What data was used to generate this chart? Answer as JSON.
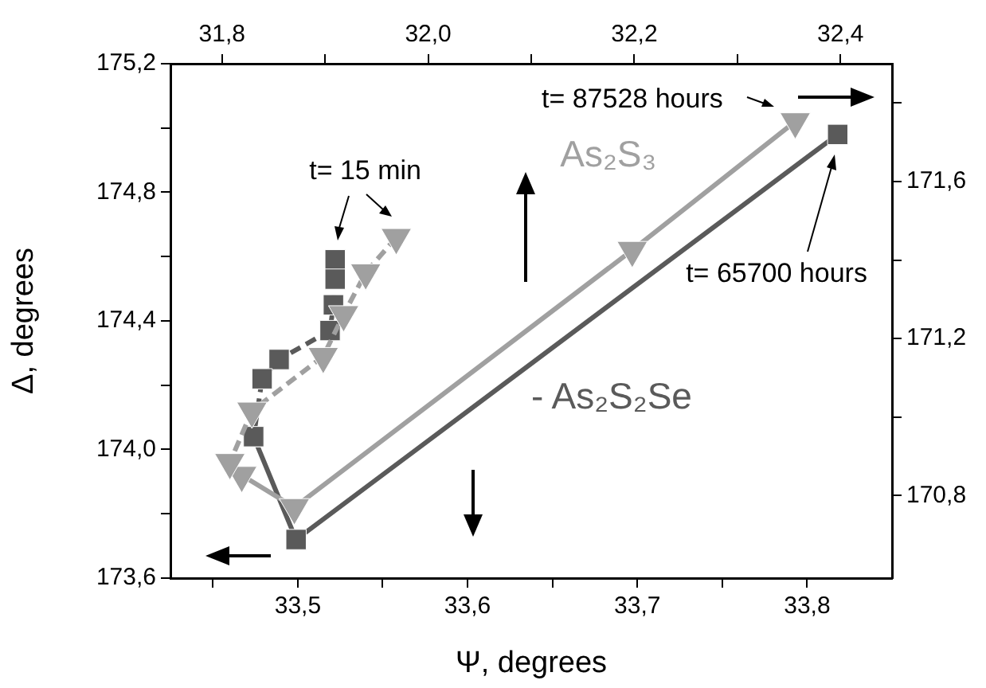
{
  "chart_data": {
    "type": "line",
    "xlabel": "Ψ, degrees",
    "ylabel": "Δ, degrees",
    "grid": false,
    "legend": false,
    "xlim": [
      33.425,
      33.85
    ],
    "xticks": [
      {
        "value": 33.45,
        "label": null
      },
      {
        "value": 33.5,
        "label": "33,5"
      },
      {
        "value": 33.55,
        "label": null
      },
      {
        "value": 33.6,
        "label": "33,6"
      },
      {
        "value": 33.65,
        "label": null
      },
      {
        "value": 33.7,
        "label": "33,7"
      },
      {
        "value": 33.75,
        "label": null
      },
      {
        "value": 33.8,
        "label": "33,8"
      }
    ],
    "x2lim": [
      31.75,
      32.45
    ],
    "x2ticks": [
      {
        "value": 31.8,
        "label": "31,8"
      },
      {
        "value": 31.9,
        "label": null
      },
      {
        "value": 32.0,
        "label": "32,0"
      },
      {
        "value": 32.1,
        "label": null
      },
      {
        "value": 32.2,
        "label": "32,2"
      },
      {
        "value": 32.3,
        "label": null
      },
      {
        "value": 32.4,
        "label": "32,4"
      }
    ],
    "ylim": [
      173.6,
      175.2
    ],
    "yticks": [
      {
        "value": 173.6,
        "label": "173,6"
      },
      {
        "value": 173.8,
        "label": null
      },
      {
        "value": 174.0,
        "label": "174,0"
      },
      {
        "value": 174.2,
        "label": null
      },
      {
        "value": 174.4,
        "label": "174,4"
      },
      {
        "value": 174.6,
        "label": null
      },
      {
        "value": 174.8,
        "label": "174,8"
      },
      {
        "value": 175.0,
        "label": null
      },
      {
        "value": 175.2,
        "label": "175,2"
      }
    ],
    "y2lim": [
      170.59,
      171.9
    ],
    "y2ticks": [
      {
        "value": 170.8,
        "label": "170,8"
      },
      {
        "value": 171.0,
        "label": null
      },
      {
        "value": 171.2,
        "label": "171,2"
      },
      {
        "value": 171.4,
        "label": null
      },
      {
        "value": 171.6,
        "label": "171,6"
      },
      {
        "value": 171.8,
        "label": null
      }
    ],
    "series": [
      {
        "color": "#a0a0a0",
        "marker": "triangle",
        "line_style": "dashed",
        "x": [
          33.558,
          33.54,
          33.527,
          33.515,
          33.473,
          33.46
        ],
        "values": [
          174.66,
          174.55,
          174.42,
          174.29,
          174.12,
          173.96
        ]
      },
      {
        "name": "As₂S₃",
        "color": "#a0a0a0",
        "marker": "triangle",
        "line_style": "solid",
        "x": [
          33.467,
          33.498,
          33.697,
          33.793
        ],
        "values": [
          173.92,
          173.82,
          174.62,
          175.02
        ]
      },
      {
        "color": "#5a5a5a",
        "marker": "square",
        "line_style": "dashed",
        "x": [
          33.522,
          33.522,
          33.521,
          33.519,
          33.489,
          33.479,
          33.474
        ],
        "values": [
          174.59,
          174.53,
          174.45,
          174.37,
          174.28,
          174.22,
          174.04
        ]
      },
      {
        "name": "- As₂S₂Se",
        "color": "#5a5a5a",
        "marker": "square",
        "line_style": "solid",
        "x": [
          33.474,
          33.499,
          33.818
        ],
        "values": [
          174.04,
          173.72,
          174.98
        ]
      }
    ],
    "annotations": [
      "t= 15 min",
      "t= 87528 hours",
      "t= 65700 hours"
    ]
  }
}
